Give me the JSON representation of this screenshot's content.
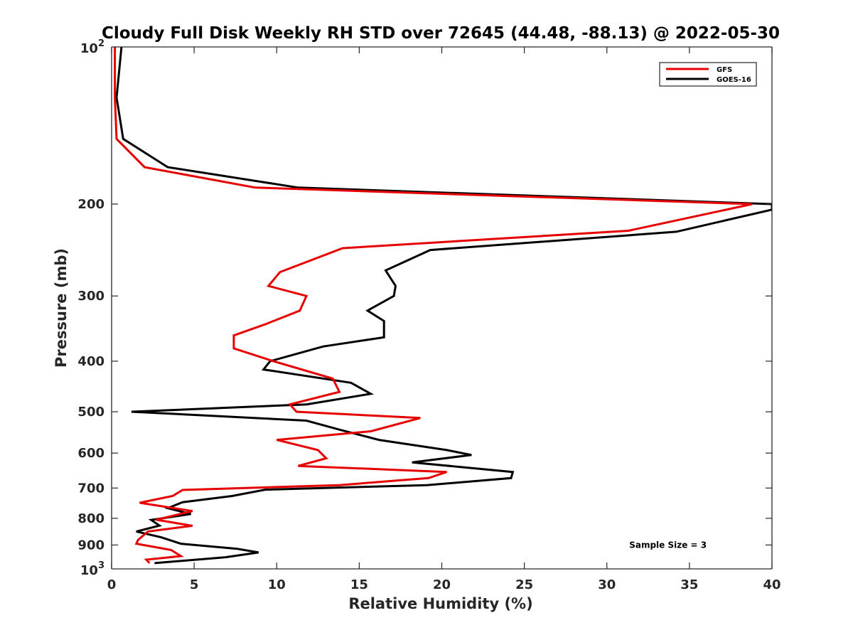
{
  "chart_data": {
    "type": "line",
    "title": "Cloudy Full Disk Weekly RH STD over 72645 (44.48, -88.13) @ 2022-05-30",
    "xlabel": "Relative Humidity (%)",
    "ylabel": "Pressure (mb)",
    "xlim": [
      0,
      40
    ],
    "ylim": [
      100,
      1000
    ],
    "y_scale": "log",
    "y_reversed": true,
    "x_ticks": [
      0,
      5,
      10,
      15,
      20,
      25,
      30,
      35,
      40
    ],
    "y_ticks": [
      {
        "value": 200,
        "label": "200"
      },
      {
        "value": 300,
        "label": "300"
      },
      {
        "value": 400,
        "label": "400"
      },
      {
        "value": 500,
        "label": "500"
      },
      {
        "value": 600,
        "label": "600"
      },
      {
        "value": 700,
        "label": "700"
      },
      {
        "value": 800,
        "label": "800"
      },
      {
        "value": 900,
        "label": "900"
      }
    ],
    "y_end_labels": [
      {
        "value": 100,
        "base": "10",
        "exp": "2"
      },
      {
        "value": 1000,
        "base": "10",
        "exp": "3"
      }
    ],
    "grid": false,
    "legend_position": "top-right",
    "series": [
      {
        "name": "GFS",
        "color": "#e60000",
        "points": [
          [
            0.2,
            100
          ],
          [
            0.2,
            125
          ],
          [
            0.3,
            150
          ],
          [
            2.0,
            170
          ],
          [
            8.7,
            186
          ],
          [
            38.8,
            200
          ],
          [
            31.3,
            225
          ],
          [
            14.0,
            243
          ],
          [
            10.2,
            270
          ],
          [
            9.5,
            287
          ],
          [
            11.8,
            300
          ],
          [
            11.4,
            320
          ],
          [
            9.3,
            340
          ],
          [
            7.4,
            357
          ],
          [
            7.4,
            378
          ],
          [
            9.8,
            400
          ],
          [
            13.4,
            432
          ],
          [
            13.8,
            458
          ],
          [
            10.8,
            484
          ],
          [
            11.2,
            500
          ],
          [
            18.7,
            514
          ],
          [
            15.7,
            545
          ],
          [
            10.0,
            566
          ],
          [
            12.5,
            592
          ],
          [
            13.0,
            614
          ],
          [
            11.3,
            635
          ],
          [
            20.3,
            652
          ],
          [
            19.2,
            670
          ],
          [
            13.8,
            691
          ],
          [
            4.3,
            706
          ],
          [
            3.7,
            725
          ],
          [
            1.7,
            747
          ],
          [
            4.9,
            775
          ],
          [
            2.7,
            805
          ],
          [
            4.9,
            827
          ],
          [
            2.2,
            848
          ],
          [
            1.6,
            880
          ],
          [
            1.5,
            895
          ],
          [
            3.6,
            920
          ],
          [
            4.2,
            945
          ],
          [
            2.1,
            960
          ],
          [
            2.3,
            975
          ]
        ]
      },
      {
        "name": "GOES-16",
        "color": "#000000",
        "points": [
          [
            0.6,
            100
          ],
          [
            0.3,
            125
          ],
          [
            0.7,
            150
          ],
          [
            3.4,
            170
          ],
          [
            11.3,
            186
          ],
          [
            40.0,
            200
          ],
          [
            40.0,
            205
          ],
          [
            34.2,
            226
          ],
          [
            19.3,
            245
          ],
          [
            16.6,
            268
          ],
          [
            17.2,
            287
          ],
          [
            17.1,
            300
          ],
          [
            15.5,
            320
          ],
          [
            16.5,
            335
          ],
          [
            16.5,
            360
          ],
          [
            12.8,
            375
          ],
          [
            9.6,
            400
          ],
          [
            9.2,
            415
          ],
          [
            14.5,
            440
          ],
          [
            15.7,
            462
          ],
          [
            11.8,
            484
          ],
          [
            1.2,
            500
          ],
          [
            11.8,
            520
          ],
          [
            13.8,
            541
          ],
          [
            16.2,
            566
          ],
          [
            20.3,
            592
          ],
          [
            21.8,
            605
          ],
          [
            18.2,
            625
          ],
          [
            24.3,
            652
          ],
          [
            24.2,
            670
          ],
          [
            19.1,
            691
          ],
          [
            9.3,
            705
          ],
          [
            7.3,
            725
          ],
          [
            4.3,
            745
          ],
          [
            3.4,
            765
          ],
          [
            4.8,
            785
          ],
          [
            2.4,
            806
          ],
          [
            2.9,
            826
          ],
          [
            1.5,
            848
          ],
          [
            3.0,
            870
          ],
          [
            4.2,
            895
          ],
          [
            7.6,
            915
          ],
          [
            8.9,
            930
          ],
          [
            6.9,
            950
          ],
          [
            2.6,
            975
          ]
        ]
      }
    ],
    "annotations": [
      {
        "text": "Sample Size = 3",
        "x": 33.7,
        "y": 900
      }
    ]
  }
}
